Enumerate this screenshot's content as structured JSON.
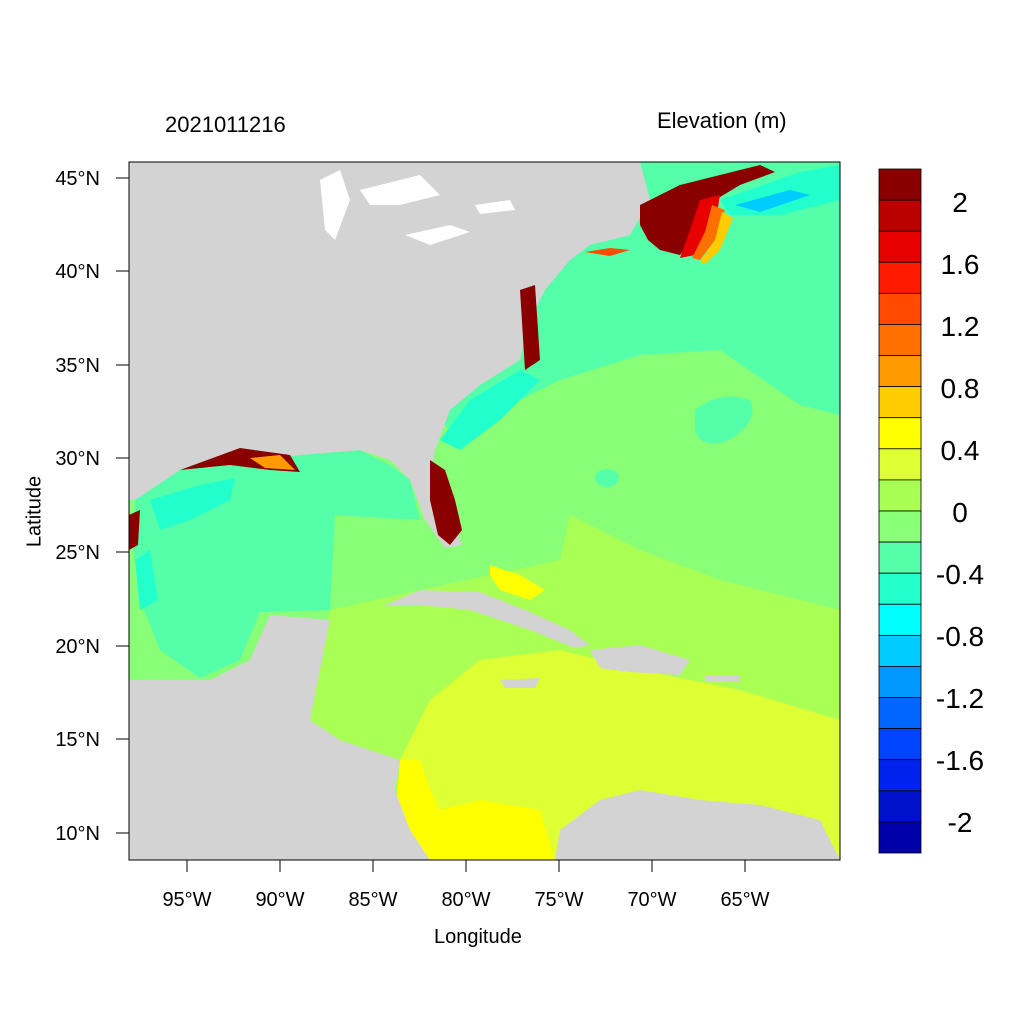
{
  "titles": {
    "left": "2021011216",
    "right": "Elevation (m)"
  },
  "axes": {
    "xlabel": "Longitude",
    "ylabel": "Latitude",
    "xticks": [
      "95°W",
      "90°W",
      "85°W",
      "80°W",
      "75°W",
      "70°W",
      "65°W"
    ],
    "yticks": [
      "45°N",
      "40°N",
      "35°N",
      "30°N",
      "25°N",
      "20°N",
      "15°N",
      "10°N"
    ]
  },
  "colorbar": {
    "labels": [
      "2",
      "1.6",
      "1.2",
      "0.8",
      "0.4",
      "0",
      "-0.4",
      "-0.8",
      "-1.2",
      "-1.6",
      "-2"
    ],
    "colors": [
      "#8a0000",
      "#bb0000",
      "#e80000",
      "#ff1a00",
      "#ff4a00",
      "#ff7000",
      "#ff9a00",
      "#ffcc00",
      "#ffff00",
      "#ddff33",
      "#aaff55",
      "#88ff77",
      "#55ffaa",
      "#22ffcc",
      "#00ffff",
      "#00ccff",
      "#0099ff",
      "#0066ff",
      "#0044ff",
      "#0022ee",
      "#0011cc",
      "#0000aa"
    ]
  },
  "map_colors": {
    "land": "#d3d3d3",
    "gulf": "#55ffaa",
    "atlantic_north": "#55ffaa",
    "atlantic_central": "#88ff77",
    "caribbean_north": "#aaff55",
    "caribbean_south": "#ddff33",
    "coast_yellow": "#ffff00",
    "surge_dark": "#8a0000"
  }
}
